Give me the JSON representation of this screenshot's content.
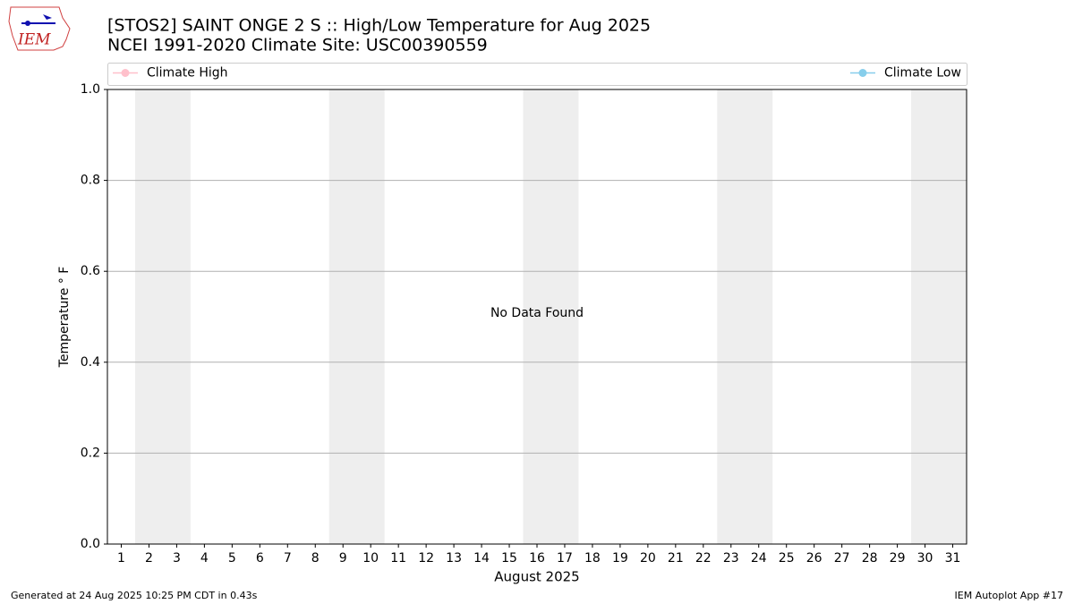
{
  "logo_text": "IEM",
  "chart_data": {
    "type": "line",
    "title": "[STOS2] SAINT ONGE 2 S :: High/Low Temperature for Aug 2025",
    "subtitle": "NCEI 1991-2020 Climate Site: USC00390559",
    "x_label": "August 2025",
    "y_label": "Temperature ° F",
    "annotation": "No Data Found",
    "footer_left": "Generated at 24 Aug 2025 10:25 PM CDT in 0.43s",
    "footer_right": "IEM Autoplot App #17",
    "x": [
      1,
      2,
      3,
      4,
      5,
      6,
      7,
      8,
      9,
      10,
      11,
      12,
      13,
      14,
      15,
      16,
      17,
      18,
      19,
      20,
      21,
      22,
      23,
      24,
      25,
      26,
      27,
      28,
      29,
      30,
      31
    ],
    "xlim": [
      0.5,
      31.5
    ],
    "xticks": [
      1,
      2,
      3,
      4,
      5,
      6,
      7,
      8,
      9,
      10,
      11,
      12,
      13,
      14,
      15,
      16,
      17,
      18,
      19,
      20,
      21,
      22,
      23,
      24,
      25,
      26,
      27,
      28,
      29,
      30,
      31
    ],
    "ylim": [
      0,
      1
    ],
    "yticks": [
      {
        "value": 0,
        "label": "0.0"
      },
      {
        "value": 0.2,
        "label": "0.2"
      },
      {
        "value": 0.4,
        "label": "0.4"
      },
      {
        "value": 0.6,
        "label": "0.6"
      },
      {
        "value": 0.8,
        "label": "0.8"
      },
      {
        "value": 1,
        "label": "1.0"
      }
    ],
    "grid": true,
    "shaded_x": [
      [
        2,
        3
      ],
      [
        9,
        10
      ],
      [
        16,
        17
      ],
      [
        23,
        24
      ],
      [
        30,
        31
      ]
    ],
    "shade_color": "#eeeeee",
    "series": [
      {
        "name": "Climate High",
        "color": "#ffc0cb",
        "values": [
          null,
          null,
          null,
          null,
          null,
          null,
          null,
          null,
          null,
          null,
          null,
          null,
          null,
          null,
          null,
          null,
          null,
          null,
          null,
          null,
          null,
          null,
          null,
          null,
          null,
          null,
          null,
          null,
          null,
          null,
          null
        ]
      },
      {
        "name": "Climate Low",
        "color": "#87ceeb",
        "values": [
          null,
          null,
          null,
          null,
          null,
          null,
          null,
          null,
          null,
          null,
          null,
          null,
          null,
          null,
          null,
          null,
          null,
          null,
          null,
          null,
          null,
          null,
          null,
          null,
          null,
          null,
          null,
          null,
          null,
          null,
          null
        ]
      }
    ]
  }
}
